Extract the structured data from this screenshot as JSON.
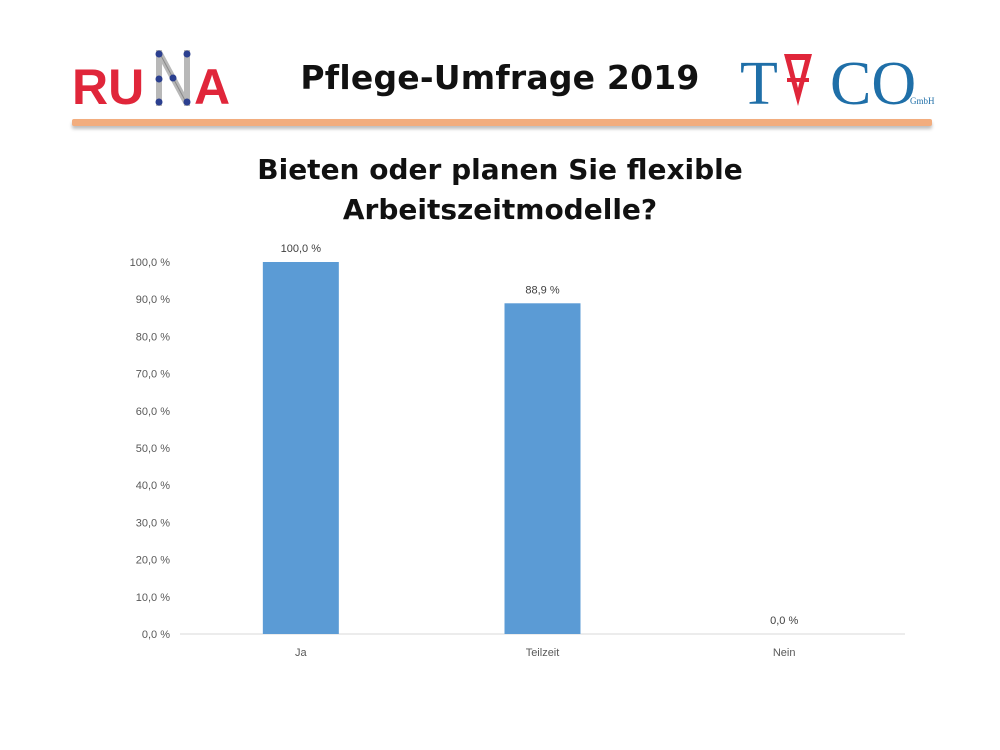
{
  "header": {
    "title": "Pflege-Umfrage 2019",
    "logo_left": "RUNA",
    "logo_right": "TACO",
    "logo_right_suffix": "GmbH",
    "rule_color": "#f2ad7e"
  },
  "chart_data": {
    "type": "bar",
    "title": "Bieten oder planen Sie flexible Arbeitszeitmodelle?",
    "categories": [
      "Ja",
      "Teilzeit",
      "Nein"
    ],
    "values": [
      100.0,
      88.9,
      0.0
    ],
    "data_labels": [
      "100,0 %",
      "88,9 %",
      "0,0 %"
    ],
    "y_ticks": [
      "0,0 %",
      "10,0 %",
      "20,0 %",
      "30,0 %",
      "40,0 %",
      "50,0 %",
      "60,0 %",
      "70,0 %",
      "80,0 %",
      "90,0 %",
      "100,0 %"
    ],
    "ylim": [
      0,
      100
    ],
    "grid": false,
    "bar_color": "#5b9bd5"
  }
}
